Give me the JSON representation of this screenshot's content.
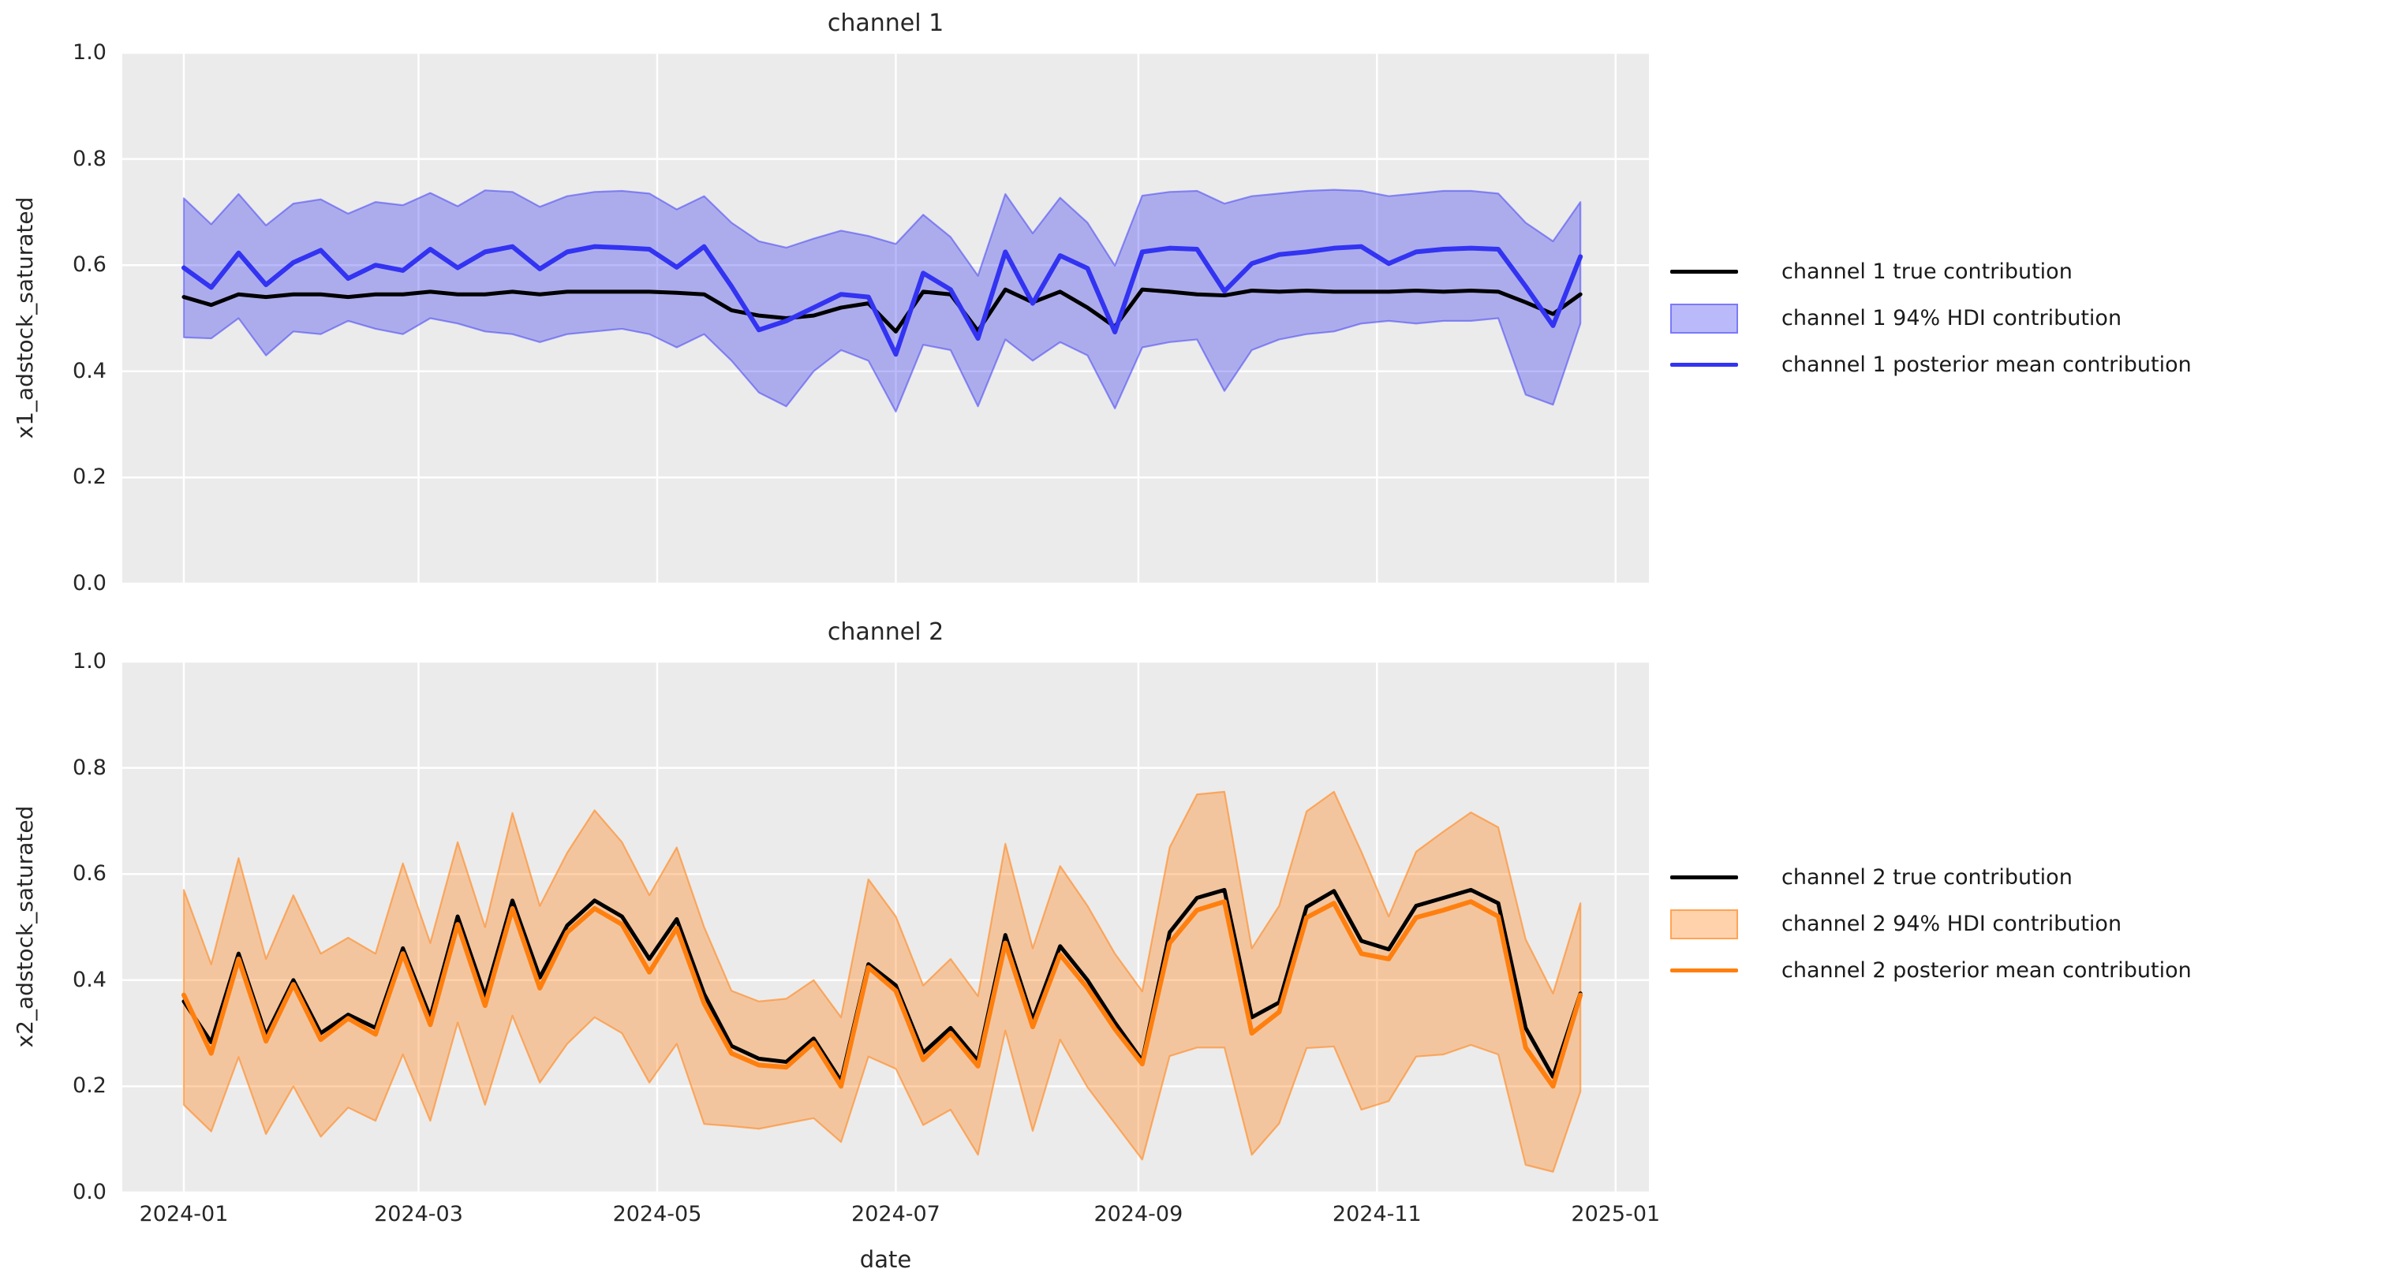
{
  "figure": {
    "background": "#ffffff",
    "panel_background": "#ebebeb",
    "grid_color": "#ffffff",
    "text_color": "#262626",
    "true_line_color": "#000000",
    "channel1_color": "#3333f2",
    "channel1_fill": "rgba(45,45,240,0.33)",
    "channel1_edge": "rgba(70,70,245,0.55)",
    "channel2_color": "#ff7f0e",
    "channel2_fill": "rgba(255,127,14,0.35)",
    "channel2_edge": "rgba(255,140,40,0.65)"
  },
  "chart_data": [
    {
      "type": "line",
      "title": "channel 1",
      "ylabel": "x1_adstock_saturated",
      "ylim": [
        0.0,
        1.0
      ],
      "yticks": [
        "0.0",
        "0.2",
        "0.4",
        "0.6",
        "0.8",
        "1.0"
      ],
      "xticks": [
        {
          "label": "2024-01",
          "day": 0
        },
        {
          "label": "2024-03",
          "day": 60
        },
        {
          "label": "2024-05",
          "day": 121
        },
        {
          "label": "2024-07",
          "day": 182
        },
        {
          "label": "2024-09",
          "day": 244
        },
        {
          "label": "2024-11",
          "day": 305
        },
        {
          "label": "2025-01",
          "day": 366
        }
      ],
      "x_dates_weekly_start": "2024-01-01",
      "x_weeks": 52,
      "legend_position": "center right outside",
      "series": [
        {
          "name": "channel 1 true contribution",
          "kind": "line",
          "color": "#000000",
          "values": [
            0.54,
            0.525,
            0.545,
            0.54,
            0.545,
            0.545,
            0.54,
            0.545,
            0.545,
            0.55,
            0.545,
            0.545,
            0.55,
            0.545,
            0.55,
            0.55,
            0.55,
            0.55,
            0.548,
            0.545,
            0.515,
            0.505,
            0.5,
            0.505,
            0.52,
            0.528,
            0.475,
            0.55,
            0.545,
            0.476,
            0.554,
            0.53,
            0.55,
            0.52,
            0.484,
            0.554,
            0.55,
            0.545,
            0.543,
            0.552,
            0.55,
            0.552,
            0.55,
            0.55,
            0.55,
            0.552,
            0.55,
            0.552,
            0.55,
            0.53,
            0.508,
            0.545
          ]
        },
        {
          "name": "channel 1 94% HDI contribution",
          "kind": "band",
          "fill": "rgba(45,45,240,0.33)",
          "edge": "rgba(70,70,245,0.55)",
          "lo": [
            0.464,
            0.462,
            0.5,
            0.43,
            0.475,
            0.47,
            0.495,
            0.48,
            0.47,
            0.5,
            0.49,
            0.475,
            0.47,
            0.455,
            0.47,
            0.475,
            0.48,
            0.47,
            0.445,
            0.47,
            0.42,
            0.36,
            0.334,
            0.4,
            0.44,
            0.42,
            0.324,
            0.45,
            0.44,
            0.334,
            0.46,
            0.42,
            0.455,
            0.43,
            0.33,
            0.445,
            0.455,
            0.46,
            0.363,
            0.44,
            0.46,
            0.47,
            0.475,
            0.49,
            0.495,
            0.49,
            0.495,
            0.495,
            0.5,
            0.356,
            0.337,
            0.49
          ],
          "hi": [
            0.726,
            0.677,
            0.734,
            0.675,
            0.716,
            0.724,
            0.697,
            0.719,
            0.713,
            0.736,
            0.711,
            0.741,
            0.738,
            0.71,
            0.73,
            0.738,
            0.74,
            0.735,
            0.705,
            0.73,
            0.68,
            0.645,
            0.633,
            0.65,
            0.665,
            0.655,
            0.64,
            0.695,
            0.653,
            0.58,
            0.734,
            0.66,
            0.727,
            0.68,
            0.599,
            0.731,
            0.738,
            0.74,
            0.716,
            0.73,
            0.735,
            0.74,
            0.742,
            0.74,
            0.73,
            0.735,
            0.74,
            0.74,
            0.735,
            0.68,
            0.645,
            0.719
          ]
        },
        {
          "name": "channel 1 posterior mean contribution",
          "kind": "line",
          "color": "#3333f2",
          "values": [
            0.595,
            0.558,
            0.623,
            0.563,
            0.605,
            0.628,
            0.575,
            0.6,
            0.59,
            0.63,
            0.595,
            0.625,
            0.635,
            0.593,
            0.625,
            0.635,
            0.633,
            0.63,
            0.596,
            0.635,
            0.56,
            0.478,
            0.495,
            0.52,
            0.545,
            0.54,
            0.432,
            0.585,
            0.554,
            0.462,
            0.625,
            0.528,
            0.618,
            0.594,
            0.474,
            0.625,
            0.632,
            0.63,
            0.551,
            0.603,
            0.62,
            0.625,
            0.632,
            0.635,
            0.603,
            0.625,
            0.63,
            0.632,
            0.63,
            0.56,
            0.486,
            0.616
          ]
        }
      ]
    },
    {
      "type": "line",
      "title": "channel 2",
      "ylabel": "x2_adstock_saturated",
      "xlabel": "date",
      "ylim": [
        0.0,
        1.0
      ],
      "yticks": [
        "0.0",
        "0.2",
        "0.4",
        "0.6",
        "0.8",
        "1.0"
      ],
      "xticks": [
        {
          "label": "2024-01",
          "day": 0
        },
        {
          "label": "2024-03",
          "day": 60
        },
        {
          "label": "2024-05",
          "day": 121
        },
        {
          "label": "2024-07",
          "day": 182
        },
        {
          "label": "2024-09",
          "day": 244
        },
        {
          "label": "2024-11",
          "day": 305
        },
        {
          "label": "2025-01",
          "day": 366
        }
      ],
      "x_dates_weekly_start": "2024-01-01",
      "x_weeks": 52,
      "legend_position": "center right outside",
      "series": [
        {
          "name": "channel 2 true contribution",
          "kind": "line",
          "color": "#000000",
          "values": [
            0.36,
            0.283,
            0.45,
            0.296,
            0.4,
            0.3,
            0.335,
            0.31,
            0.46,
            0.33,
            0.52,
            0.37,
            0.55,
            0.405,
            0.503,
            0.55,
            0.52,
            0.44,
            0.515,
            0.374,
            0.276,
            0.252,
            0.246,
            0.29,
            0.21,
            0.43,
            0.39,
            0.263,
            0.31,
            0.248,
            0.485,
            0.325,
            0.464,
            0.4,
            0.32,
            0.248,
            0.49,
            0.555,
            0.57,
            0.33,
            0.358,
            0.538,
            0.568,
            0.474,
            0.458,
            0.54,
            0.555,
            0.57,
            0.545,
            0.31,
            0.218,
            0.375
          ]
        },
        {
          "name": "channel 2 94% HDI contribution",
          "kind": "band",
          "fill": "rgba(255,127,14,0.35)",
          "edge": "rgba(255,140,40,0.65)",
          "lo": [
            0.165,
            0.115,
            0.255,
            0.11,
            0.2,
            0.105,
            0.16,
            0.135,
            0.26,
            0.135,
            0.32,
            0.165,
            0.333,
            0.207,
            0.28,
            0.33,
            0.3,
            0.207,
            0.28,
            0.129,
            0.125,
            0.12,
            0.13,
            0.14,
            0.095,
            0.256,
            0.233,
            0.127,
            0.156,
            0.071,
            0.305,
            0.116,
            0.288,
            0.198,
            0.13,
            0.062,
            0.257,
            0.273,
            0.273,
            0.071,
            0.13,
            0.272,
            0.275,
            0.156,
            0.172,
            0.256,
            0.26,
            0.278,
            0.26,
            0.052,
            0.039,
            0.19
          ],
          "hi": [
            0.57,
            0.43,
            0.63,
            0.44,
            0.56,
            0.45,
            0.48,
            0.45,
            0.62,
            0.47,
            0.66,
            0.5,
            0.715,
            0.54,
            0.64,
            0.72,
            0.66,
            0.56,
            0.65,
            0.5,
            0.38,
            0.36,
            0.365,
            0.4,
            0.33,
            0.59,
            0.52,
            0.39,
            0.44,
            0.37,
            0.657,
            0.46,
            0.615,
            0.54,
            0.45,
            0.379,
            0.65,
            0.75,
            0.755,
            0.46,
            0.54,
            0.718,
            0.755,
            0.642,
            0.52,
            0.642,
            0.68,
            0.716,
            0.688,
            0.477,
            0.375,
            0.545
          ]
        },
        {
          "name": "channel 2 posterior mean contribution",
          "kind": "line",
          "color": "#ff7f0e",
          "values": [
            0.372,
            0.262,
            0.44,
            0.285,
            0.392,
            0.288,
            0.328,
            0.298,
            0.45,
            0.316,
            0.505,
            0.352,
            0.535,
            0.385,
            0.49,
            0.535,
            0.505,
            0.415,
            0.498,
            0.356,
            0.262,
            0.24,
            0.236,
            0.282,
            0.2,
            0.424,
            0.38,
            0.25,
            0.3,
            0.238,
            0.47,
            0.312,
            0.448,
            0.385,
            0.308,
            0.242,
            0.47,
            0.532,
            0.548,
            0.3,
            0.34,
            0.518,
            0.545,
            0.45,
            0.44,
            0.518,
            0.532,
            0.548,
            0.52,
            0.273,
            0.2,
            0.372
          ]
        }
      ]
    }
  ]
}
